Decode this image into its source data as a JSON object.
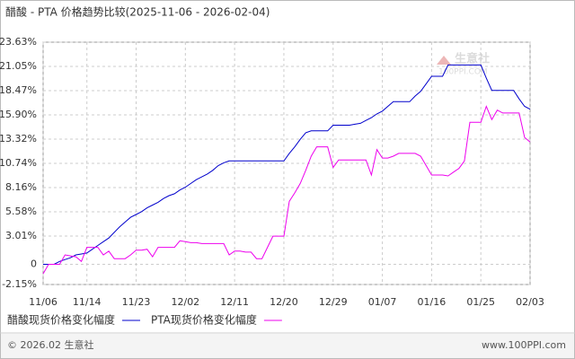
{
  "chart_data": {
    "type": "line",
    "title": "醋酸 - PTA 价格趋势比较(2025-11-06 - 2026-02-04)",
    "watermark": {
      "name": "生意社",
      "site": "100PPI.COM"
    },
    "footer": {
      "left": "© 2026.02 生意社",
      "right": "www.100PPI.com"
    },
    "categories": [
      "11/06",
      null,
      null,
      null,
      null,
      null,
      null,
      null,
      "11/14",
      null,
      null,
      null,
      null,
      null,
      null,
      null,
      null,
      "11/23",
      null,
      null,
      null,
      null,
      null,
      null,
      null,
      null,
      "12/02",
      null,
      null,
      null,
      null,
      null,
      null,
      null,
      null,
      "12/11",
      null,
      null,
      null,
      null,
      null,
      null,
      null,
      null,
      "12/20",
      null,
      null,
      null,
      null,
      null,
      null,
      null,
      null,
      "12/29",
      null,
      null,
      null,
      null,
      null,
      null,
      null,
      null,
      "01/07",
      null,
      null,
      null,
      null,
      null,
      null,
      null,
      null,
      "01/16",
      null,
      null,
      null,
      null,
      null,
      null,
      null,
      null,
      "01/25",
      null,
      null,
      null,
      null,
      null,
      null,
      null,
      null,
      "02/03"
    ],
    "series": [
      {
        "name": "醋酸现货价格变化幅度",
        "color": "#0000cc",
        "values": [
          0,
          0,
          0,
          0.3,
          0.5,
          0.7,
          1,
          1.1,
          1.2,
          1.6,
          2,
          2.4,
          2.8,
          3.4,
          4,
          4.5,
          5,
          5.3,
          5.6,
          6,
          6.3,
          6.6,
          7,
          7.3,
          7.5,
          7.9,
          8.2,
          8.6,
          9,
          9.3,
          9.6,
          10,
          10.5,
          10.8,
          11,
          11,
          11,
          11,
          11,
          11,
          11,
          11,
          11,
          11,
          11,
          11.8,
          12.5,
          13.3,
          14,
          14.2,
          14.2,
          14.2,
          14.2,
          14.8,
          14.8,
          14.8,
          14.8,
          14.9,
          15,
          15.3,
          15.6,
          16,
          16.3,
          16.8,
          17.3,
          17.3,
          17.3,
          17.3,
          17.9,
          18.4,
          19.2,
          20,
          20,
          20,
          21.2,
          21.2,
          21.2,
          21.2,
          21.2,
          21.2,
          21.2,
          19.8,
          18.5,
          18.5,
          18.5,
          18.5,
          18.5,
          17.6,
          16.8,
          16.5
        ]
      },
      {
        "name": "PTA现货价格变化幅度",
        "color": "#ee00ee",
        "values": [
          -1,
          0,
          0,
          0,
          1,
          0.9,
          0.8,
          0.3,
          1.8,
          1.8,
          1.8,
          1.0,
          1.4,
          0.6,
          0.6,
          0.6,
          1.0,
          1.5,
          1.5,
          1.6,
          0.8,
          1.8,
          1.8,
          1.8,
          1.8,
          2.5,
          2.4,
          2.3,
          2.3,
          2.2,
          2.2,
          2.2,
          2.2,
          2.2,
          1.0,
          1.4,
          1.4,
          1.3,
          1.3,
          0.6,
          0.6,
          1.8,
          3.0,
          3.0,
          3.0,
          6.7,
          7.6,
          8.6,
          10,
          11.5,
          12.5,
          12.5,
          12.5,
          10.3,
          11.1,
          11.1,
          11.1,
          11.1,
          11.1,
          11.1,
          9.5,
          12.2,
          11.3,
          11.3,
          11.5,
          11.8,
          11.8,
          11.8,
          11.8,
          11.5,
          10.5,
          9.5,
          9.5,
          9.5,
          9.4,
          9.8,
          10.2,
          11,
          15.1,
          15.1,
          15.1,
          16.8,
          15.4,
          16.4,
          16.1,
          16.1,
          16.1,
          16.1,
          13.5,
          13.0
        ]
      }
    ],
    "ylim": [
      -2.15,
      23.63
    ],
    "yticks": [
      {
        "value": 23.63,
        "label": "23.63%"
      },
      {
        "value": 21.05,
        "label": "21.05%"
      },
      {
        "value": 18.47,
        "label": "18.47%"
      },
      {
        "value": 15.9,
        "label": "15.90%"
      },
      {
        "value": 13.32,
        "label": "13.32%"
      },
      {
        "value": 10.74,
        "label": "10.74%"
      },
      {
        "value": 8.16,
        "label": "8.16%"
      },
      {
        "value": 5.58,
        "label": "5.58%"
      },
      {
        "value": 3.01,
        "label": "3.01%"
      },
      0,
      {
        "value": -2.15,
        "label": "-2.15%"
      }
    ],
    "grid": true
  }
}
